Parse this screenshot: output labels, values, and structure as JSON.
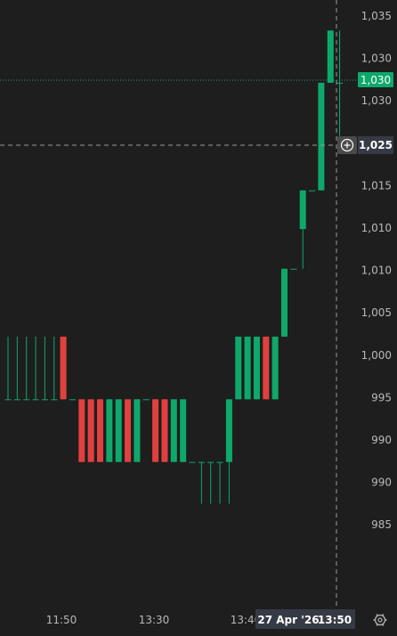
{
  "chart_data": {
    "type": "candlestick",
    "y_ticks": [
      "1,035",
      "1,030",
      "1,030",
      "1,020",
      "1,015",
      "1,010",
      "1,010",
      "1,005",
      "1,000",
      "995",
      "990",
      "990",
      "985"
    ],
    "x_ticks": [
      "11:50",
      "13:30",
      "13:40"
    ],
    "crosshair": {
      "date_label": "27 Apr '26",
      "time_label": "13:50",
      "price_label": "1,025"
    },
    "last_price": {
      "label": "1,030",
      "value": 1030.3
    },
    "ylim": [
      982.8,
      1037.2
    ],
    "candles": [
      {
        "o": 1000.0,
        "h": 1006.0,
        "l": 1000.0,
        "c": 1000.0
      },
      {
        "o": 1000.0,
        "h": 1006.0,
        "l": 1000.0,
        "c": 1000.0
      },
      {
        "o": 1000.0,
        "h": 1006.0,
        "l": 1000.0,
        "c": 1000.0
      },
      {
        "o": 1000.0,
        "h": 1006.0,
        "l": 1000.0,
        "c": 1000.0
      },
      {
        "o": 1000.0,
        "h": 1006.0,
        "l": 1000.0,
        "c": 1000.0
      },
      {
        "o": 1000.0,
        "h": 1006.0,
        "l": 1000.0,
        "c": 1000.0
      },
      {
        "o": 1006.0,
        "h": 1006.0,
        "l": 1000.0,
        "c": 1000.0
      },
      {
        "o": 1000.0,
        "h": 1000.0,
        "l": 1000.0,
        "c": 1000.0
      },
      {
        "o": 1000.0,
        "h": 1000.0,
        "l": 994.0,
        "c": 994.0
      },
      {
        "o": 1000.0,
        "h": 1000.0,
        "l": 994.0,
        "c": 994.0
      },
      {
        "o": 1000.0,
        "h": 1000.0,
        "l": 994.0,
        "c": 994.0
      },
      {
        "o": 994.0,
        "h": 1000.0,
        "l": 994.0,
        "c": 1000.0
      },
      {
        "o": 994.0,
        "h": 1000.0,
        "l": 994.0,
        "c": 1000.0
      },
      {
        "o": 1000.0,
        "h": 1000.0,
        "l": 994.0,
        "c": 994.0
      },
      {
        "o": 994.0,
        "h": 1000.0,
        "l": 994.0,
        "c": 1000.0
      },
      {
        "o": 1000.0,
        "h": 1000.0,
        "l": 1000.0,
        "c": 1000.0
      },
      {
        "o": 1000.0,
        "h": 1000.0,
        "l": 994.0,
        "c": 994.0
      },
      {
        "o": 1000.0,
        "h": 1000.0,
        "l": 994.0,
        "c": 994.0
      },
      {
        "o": 994.0,
        "h": 1000.0,
        "l": 994.0,
        "c": 1000.0
      },
      {
        "o": 994.0,
        "h": 1000.0,
        "l": 994.0,
        "c": 1000.0
      },
      {
        "o": 994.0,
        "h": 994.0,
        "l": 994.0,
        "c": 994.0
      },
      {
        "o": 994.0,
        "h": 994.0,
        "l": 990.0,
        "c": 994.0
      },
      {
        "o": 994.0,
        "h": 994.0,
        "l": 990.0,
        "c": 994.0
      },
      {
        "o": 994.0,
        "h": 994.0,
        "l": 990.0,
        "c": 994.0
      },
      {
        "o": 994.0,
        "h": 1000.0,
        "l": 990.0,
        "c": 1000.0
      },
      {
        "o": 1000.0,
        "h": 1006.0,
        "l": 1000.0,
        "c": 1006.0
      },
      {
        "o": 1000.0,
        "h": 1006.0,
        "l": 1000.0,
        "c": 1006.0
      },
      {
        "o": 1000.0,
        "h": 1006.0,
        "l": 1000.0,
        "c": 1006.0
      },
      {
        "o": 1006.0,
        "h": 1006.0,
        "l": 1000.0,
        "c": 1000.0
      },
      {
        "o": 1000.0,
        "h": 1006.0,
        "l": 1000.0,
        "c": 1006.0
      },
      {
        "o": 1006.0,
        "h": 1012.5,
        "l": 1006.0,
        "c": 1012.5
      },
      {
        "o": 1012.5,
        "h": 1012.5,
        "l": 1012.5,
        "c": 1012.5
      },
      {
        "o": 1016.3,
        "h": 1020.0,
        "l": 1012.5,
        "c": 1020.0
      },
      {
        "o": 1020.0,
        "h": 1020.0,
        "l": 1020.0,
        "c": 1020.0
      },
      {
        "o": 1020.0,
        "h": 1030.3,
        "l": 1020.0,
        "c": 1030.3
      },
      {
        "o": 1030.3,
        "h": 1035.3,
        "l": 1030.3,
        "c": 1035.3
      },
      {
        "o": 1030.3,
        "h": 1035.3,
        "l": 1025.2,
        "c": 1030.3
      }
    ]
  },
  "colors": {
    "background": "#1e1e1e",
    "up": "#0fa86b",
    "down": "#e0413f",
    "grid_line": "#9a9a9a",
    "last_price_badge": "#0fa86b",
    "crosshair_badge": "#363a45"
  },
  "icons": {
    "crosshair_add": "plus-circle-icon",
    "settings": "gear-icon"
  }
}
